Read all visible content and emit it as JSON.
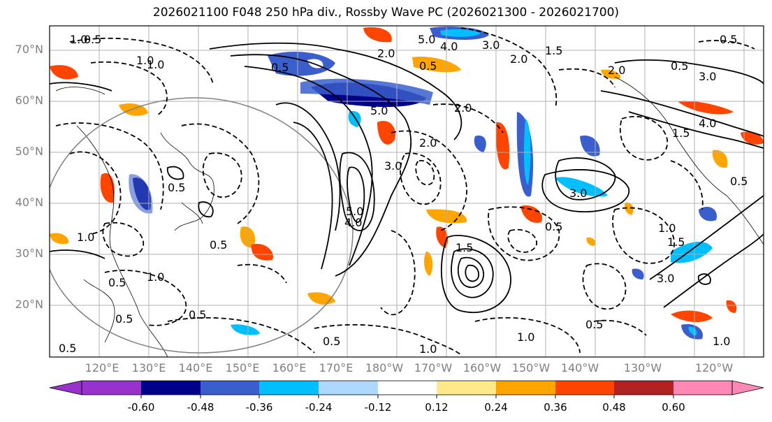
{
  "title": "2026021100 F048 250 hPa div., Rossby Wave PC (2026021300 - 2026021700)",
  "map": {
    "lat_labels": [
      "70°N",
      "60°N",
      "50°N",
      "40°N",
      "30°N",
      "20°N"
    ],
    "lon_labels": [
      "120°E",
      "130°E",
      "140°E",
      "150°E",
      "160°E",
      "170°E",
      "180°W",
      "170°W",
      "160°W",
      "150°W",
      "140°W",
      "130°W",
      "120°W"
    ],
    "contour_labels": [
      "1.0",
      "0.5",
      "2.0",
      "5.0",
      "4.0",
      "3.0",
      "2.0",
      "1.5",
      "2.0",
      "0.5",
      "3.0",
      "0.5",
      "0.5",
      "5.0",
      "0.5",
      "1.0",
      "1.0",
      "2.0",
      "0.5",
      "5.0",
      "4.0",
      "0.5",
      "1.5",
      "0.5",
      "0.5",
      "1.0",
      "3.0",
      "1.0",
      "1.5",
      "3.0",
      "0.5",
      "0.5",
      "1.0",
      "0.5",
      "0.5",
      "1.0",
      "1.0",
      "1.0",
      "1.5",
      "0.5",
      "4.0",
      "0.5",
      "3.0",
      "2.0"
    ]
  },
  "colorbar": {
    "ticks": [
      "-0.60",
      "-0.48",
      "-0.36",
      "-0.24",
      "-0.12",
      "0.12",
      "0.24",
      "0.36",
      "0.48",
      "0.60"
    ],
    "colors": [
      "#9932cc",
      "#00008b",
      "#3a5fcd",
      "#00bfff",
      "#add8ff",
      "#ffffff",
      "#ffe98a",
      "#ffa500",
      "#ff4500",
      "#b22222",
      "#ff88b4"
    ]
  }
}
